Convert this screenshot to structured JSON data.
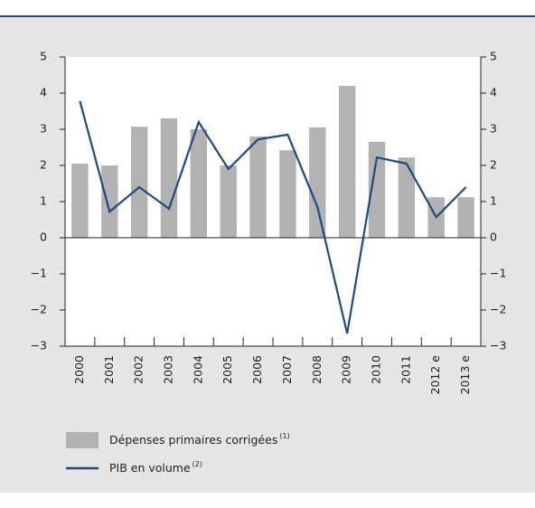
{
  "chart_data": {
    "type": "bar_line",
    "categories": [
      "2000",
      "2001",
      "2002",
      "2003",
      "2004",
      "2005",
      "2006",
      "2007",
      "2008",
      "2009",
      "2010",
      "2011",
      "2012 e",
      "2013 e"
    ],
    "series": [
      {
        "name": "Dépenses primaires corrigées",
        "note": "(1)",
        "type": "bar",
        "color": "#b2b2b2",
        "values": [
          2.05,
          2.0,
          3.07,
          3.3,
          3.0,
          2.0,
          2.8,
          2.42,
          3.05,
          4.2,
          2.65,
          2.22,
          1.12,
          1.12
        ]
      },
      {
        "name": "PIB en volume",
        "note": "(2)",
        "type": "line",
        "color": "#1b4a87",
        "values": [
          3.78,
          0.72,
          1.4,
          0.8,
          3.2,
          1.9,
          2.72,
          2.85,
          0.85,
          -2.65,
          2.22,
          2.05,
          0.57,
          1.4
        ]
      }
    ],
    "ylim": [
      -3,
      5
    ],
    "yticks": [
      {
        "value": -3,
        "label": "−3"
      },
      {
        "value": -2,
        "label": "−2"
      },
      {
        "value": -1,
        "label": "−1"
      },
      0,
      1,
      2,
      3,
      4,
      5
    ],
    "y2lim": [
      -3,
      5
    ],
    "y2ticks": [
      {
        "value": -3,
        "label": "−3"
      },
      {
        "value": -2,
        "label": "−2"
      },
      {
        "value": -1,
        "label": "−1"
      },
      0,
      1,
      2,
      3,
      4,
      5
    ]
  }
}
